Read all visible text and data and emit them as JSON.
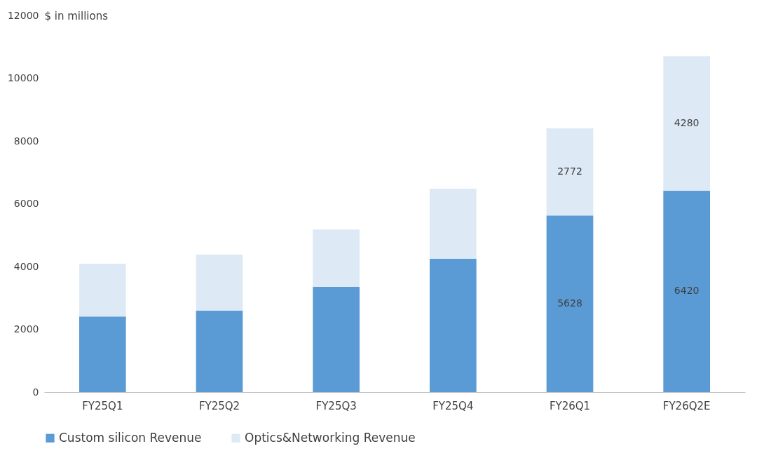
{
  "chart_data": {
    "type": "bar",
    "ylabel": "$ in millions",
    "categories": [
      "FY25Q1",
      "FY25Q2",
      "FY25Q3",
      "FY25Q4",
      "FY26Q1",
      "FY26Q2E"
    ],
    "stacked": true,
    "ylim": [
      0,
      12000
    ],
    "yticks": [
      0,
      2000,
      4000,
      6000,
      8000,
      10000,
      12000
    ],
    "grid": false,
    "legend": "bottom",
    "series": [
      {
        "name": "Custom silicon Revenue",
        "color": "#5b9bd5",
        "values": [
          2410,
          2590,
          3350,
          4250,
          5628,
          6420
        ],
        "value_labels": [
          null,
          null,
          null,
          null,
          "5628",
          "6420"
        ]
      },
      {
        "name": "Optics&Networking Revenue",
        "color": "#ddeaf6",
        "values": [
          1680,
          1790,
          1830,
          2230,
          2772,
          4280
        ],
        "value_labels": [
          null,
          null,
          null,
          null,
          "2772",
          "4280"
        ]
      }
    ]
  }
}
